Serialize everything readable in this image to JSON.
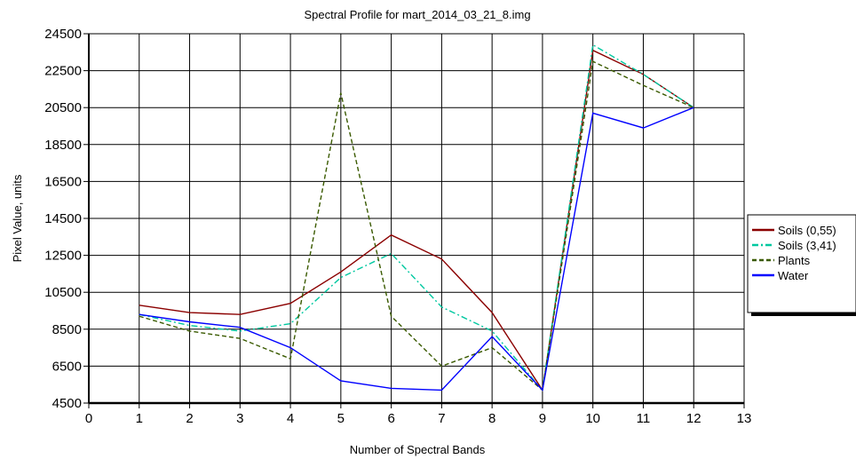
{
  "chart_data": {
    "type": "line",
    "title": "Spectral Profile for mart_2014_03_21_8.img",
    "xlabel": "Number of Spectral Bands",
    "ylabel": "Pixel Value, units",
    "xlim": [
      0,
      13
    ],
    "ylim": [
      4500,
      24500
    ],
    "x_ticks": [
      0,
      1,
      2,
      3,
      4,
      5,
      6,
      7,
      8,
      9,
      10,
      11,
      12,
      13
    ],
    "y_ticks": [
      4500,
      6500,
      8500,
      10500,
      12500,
      14500,
      16500,
      18500,
      20500,
      22500,
      24500
    ],
    "grid": true,
    "legend_position": "right",
    "x": [
      1,
      2,
      3,
      4,
      5,
      6,
      7,
      8,
      9,
      10,
      11,
      12
    ],
    "series": [
      {
        "name": "Soils (0,55)",
        "color": "#8b0000",
        "dash": "solid",
        "values": [
          9800,
          9400,
          9300,
          9900,
          11600,
          13600,
          12300,
          9400,
          5200,
          23600,
          22300,
          20500
        ]
      },
      {
        "name": "Soils (3,41)",
        "color": "#00c8a0",
        "dash": "dashdot",
        "values": [
          9300,
          8700,
          8400,
          8800,
          11300,
          12600,
          9700,
          8400,
          5200,
          23900,
          22300,
          20500
        ]
      },
      {
        "name": "Plants",
        "color": "#3a5a00",
        "dash": "dash",
        "values": [
          9200,
          8400,
          8000,
          6900,
          21300,
          9200,
          6500,
          7500,
          5200,
          23000,
          21700,
          20500
        ]
      },
      {
        "name": "Water",
        "color": "#0000ff",
        "dash": "solid",
        "values": [
          9300,
          8900,
          8600,
          7500,
          5700,
          5300,
          5200,
          8100,
          5200,
          20200,
          19400,
          20500
        ]
      }
    ]
  }
}
